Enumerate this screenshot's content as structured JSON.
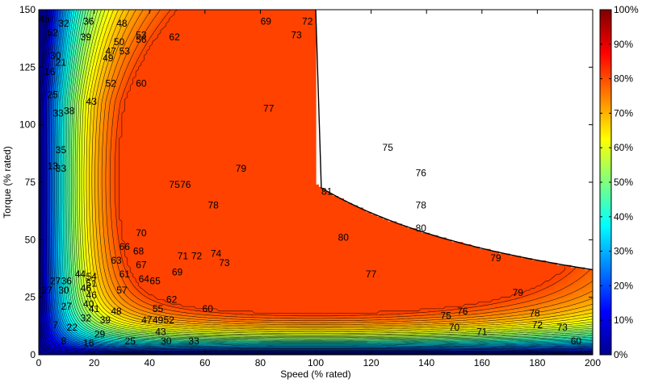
{
  "chart_data": {
    "type": "heatmap",
    "subtype": "filled-contour",
    "title": "",
    "xlabel": "Speed (% rated)",
    "ylabel": "Torque (% rated)",
    "xlim": [
      0,
      200
    ],
    "ylim": [
      0,
      150
    ],
    "x_ticks": [
      0,
      20,
      40,
      60,
      80,
      100,
      120,
      140,
      160,
      180,
      200
    ],
    "y_ticks": [
      0,
      25,
      50,
      75,
      100,
      125,
      150
    ],
    "colorbar": {
      "range": [
        0,
        100
      ],
      "ticks": [
        0,
        10,
        20,
        30,
        40,
        50,
        60,
        70,
        80,
        90,
        100
      ],
      "tick_labels": [
        "0%",
        "10%",
        "20%",
        "30%",
        "40%",
        "50%",
        "60%",
        "70%",
        "80%",
        "90%",
        "100%"
      ],
      "colormap": "jet"
    },
    "operating_limit": {
      "base_speed": 100,
      "max_torque": 150,
      "torque_at_max_speed": 37
    },
    "peak": {
      "speed": 105,
      "torque": 82,
      "value": 81
    },
    "contour_labels": [
      {
        "x": 2,
        "y": 146,
        "text": "45"
      },
      {
        "x": 5,
        "y": 140,
        "text": "52"
      },
      {
        "x": 9,
        "y": 144,
        "text": "32"
      },
      {
        "x": 18,
        "y": 145,
        "text": "36"
      },
      {
        "x": 17,
        "y": 138,
        "text": "39"
      },
      {
        "x": 30,
        "y": 144,
        "text": "48"
      },
      {
        "x": 29,
        "y": 136,
        "text": "50"
      },
      {
        "x": 37,
        "y": 139,
        "text": "53"
      },
      {
        "x": 37,
        "y": 137,
        "text": "56"
      },
      {
        "x": 49,
        "y": 138,
        "text": "62"
      },
      {
        "x": 26,
        "y": 132,
        "text": "47"
      },
      {
        "x": 25,
        "y": 129,
        "text": "49"
      },
      {
        "x": 31,
        "y": 132,
        "text": "53"
      },
      {
        "x": 26,
        "y": 118,
        "text": "52"
      },
      {
        "x": 37,
        "y": 118,
        "text": "60"
      },
      {
        "x": 19,
        "y": 110,
        "text": "43"
      },
      {
        "x": 6,
        "y": 130,
        "text": "30"
      },
      {
        "x": 4,
        "y": 123,
        "text": "16"
      },
      {
        "x": 8,
        "y": 127,
        "text": "21"
      },
      {
        "x": 5,
        "y": 113,
        "text": "25"
      },
      {
        "x": 7,
        "y": 105,
        "text": "33"
      },
      {
        "x": 11,
        "y": 106,
        "text": "38"
      },
      {
        "x": 8,
        "y": 89,
        "text": "35"
      },
      {
        "x": 5,
        "y": 82,
        "text": "13"
      },
      {
        "x": 8,
        "y": 81,
        "text": "33"
      },
      {
        "x": 82,
        "y": 145,
        "text": "69"
      },
      {
        "x": 97,
        "y": 145,
        "text": "72"
      },
      {
        "x": 93,
        "y": 139,
        "text": "73"
      },
      {
        "x": 83,
        "y": 107,
        "text": "77"
      },
      {
        "x": 73,
        "y": 81,
        "text": "79"
      },
      {
        "x": 104,
        "y": 71,
        "text": "81"
      },
      {
        "x": 110,
        "y": 51,
        "text": "80"
      },
      {
        "x": 49,
        "y": 74,
        "text": "75"
      },
      {
        "x": 53,
        "y": 74,
        "text": "76"
      },
      {
        "x": 63,
        "y": 65,
        "text": "78"
      },
      {
        "x": 126,
        "y": 90,
        "text": "75"
      },
      {
        "x": 138,
        "y": 79,
        "text": "76"
      },
      {
        "x": 138,
        "y": 65,
        "text": "78"
      },
      {
        "x": 138,
        "y": 55,
        "text": "80"
      },
      {
        "x": 165,
        "y": 42,
        "text": "79"
      },
      {
        "x": 120,
        "y": 35,
        "text": "77"
      },
      {
        "x": 173,
        "y": 27,
        "text": "79"
      },
      {
        "x": 52,
        "y": 43,
        "text": "71"
      },
      {
        "x": 57,
        "y": 43,
        "text": "72"
      },
      {
        "x": 64,
        "y": 44,
        "text": "74"
      },
      {
        "x": 67,
        "y": 40,
        "text": "73"
      },
      {
        "x": 37,
        "y": 53,
        "text": "70"
      },
      {
        "x": 31,
        "y": 47,
        "text": "66"
      },
      {
        "x": 36,
        "y": 45,
        "text": "68"
      },
      {
        "x": 28,
        "y": 41,
        "text": "63"
      },
      {
        "x": 37,
        "y": 39,
        "text": "67"
      },
      {
        "x": 31,
        "y": 35,
        "text": "61"
      },
      {
        "x": 38,
        "y": 33,
        "text": "64"
      },
      {
        "x": 42,
        "y": 32,
        "text": "65"
      },
      {
        "x": 50,
        "y": 36,
        "text": "69"
      },
      {
        "x": 30,
        "y": 28,
        "text": "57"
      },
      {
        "x": 48,
        "y": 24,
        "text": "62"
      },
      {
        "x": 61,
        "y": 20,
        "text": "60"
      },
      {
        "x": 19,
        "y": 34,
        "text": "54"
      },
      {
        "x": 15,
        "y": 35,
        "text": "44"
      },
      {
        "x": 6,
        "y": 32,
        "text": "27"
      },
      {
        "x": 10,
        "y": 32,
        "text": "36"
      },
      {
        "x": 3,
        "y": 28,
        "text": "27"
      },
      {
        "x": 9,
        "y": 28,
        "text": "30"
      },
      {
        "x": 17,
        "y": 29,
        "text": "46"
      },
      {
        "x": 19,
        "y": 31,
        "text": "51"
      },
      {
        "x": 19,
        "y": 26,
        "text": "46"
      },
      {
        "x": 10,
        "y": 21,
        "text": "27"
      },
      {
        "x": 18,
        "y": 22,
        "text": "40"
      },
      {
        "x": 20,
        "y": 20,
        "text": "41"
      },
      {
        "x": 17,
        "y": 16,
        "text": "32"
      },
      {
        "x": 24,
        "y": 15,
        "text": "39"
      },
      {
        "x": 28,
        "y": 19,
        "text": "48"
      },
      {
        "x": 43,
        "y": 20,
        "text": "55"
      },
      {
        "x": 39,
        "y": 15,
        "text": "47"
      },
      {
        "x": 43,
        "y": 15,
        "text": "49"
      },
      {
        "x": 47,
        "y": 15,
        "text": "52"
      },
      {
        "x": 44,
        "y": 10,
        "text": "43"
      },
      {
        "x": 12,
        "y": 12,
        "text": "22"
      },
      {
        "x": 6,
        "y": 13,
        "text": "7"
      },
      {
        "x": 22,
        "y": 9,
        "text": "29"
      },
      {
        "x": 18,
        "y": 5,
        "text": "16"
      },
      {
        "x": 33,
        "y": 6,
        "text": "25"
      },
      {
        "x": 46,
        "y": 6,
        "text": "30"
      },
      {
        "x": 56,
        "y": 6,
        "text": "33"
      },
      {
        "x": 9,
        "y": 6,
        "text": "8"
      },
      {
        "x": 150,
        "y": 12,
        "text": "70"
      },
      {
        "x": 160,
        "y": 10,
        "text": "71"
      },
      {
        "x": 180,
        "y": 13,
        "text": "72"
      },
      {
        "x": 189,
        "y": 12,
        "text": "73"
      },
      {
        "x": 147,
        "y": 17,
        "text": "75"
      },
      {
        "x": 153,
        "y": 19,
        "text": "76"
      },
      {
        "x": 179,
        "y": 18,
        "text": "78"
      },
      {
        "x": 194,
        "y": 6,
        "text": "60"
      }
    ]
  }
}
